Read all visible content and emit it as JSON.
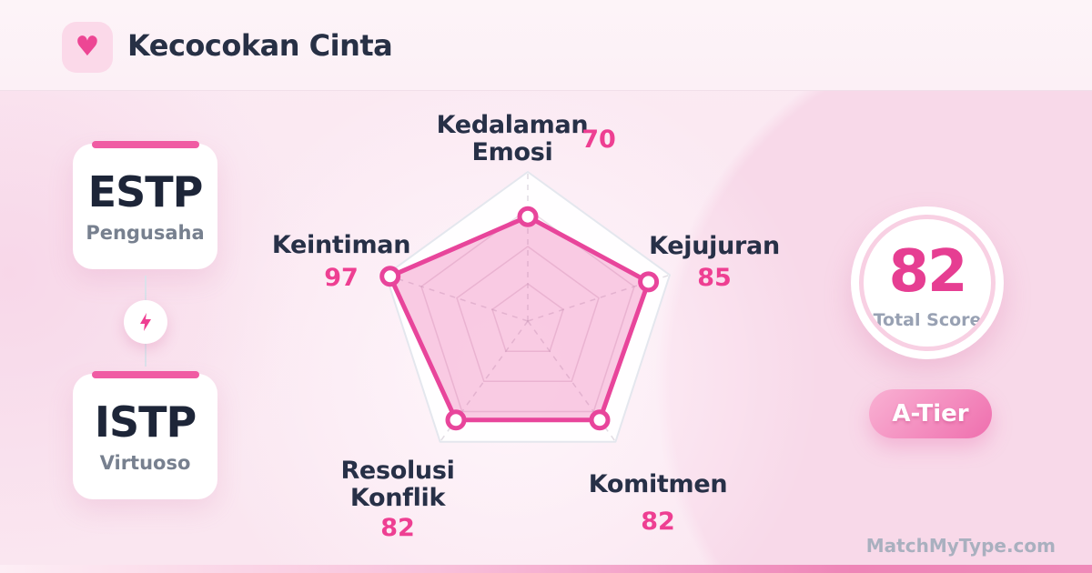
{
  "header": {
    "title": "Kecocokan Cinta"
  },
  "pair": {
    "person1": {
      "type": "ESTP",
      "nickname": "Pengusaha"
    },
    "person2": {
      "type": "ISTP",
      "nickname": "Virtuoso"
    }
  },
  "chart_data": {
    "type": "radar",
    "title": "Kecocokan Cinta",
    "categories": [
      "Kedalaman Emosi",
      "Kejujuran",
      "Komitmen",
      "Resolusi Konflik",
      "Keintiman"
    ],
    "values": [
      70,
      85,
      82,
      82,
      97
    ],
    "axis_range": [
      0,
      100
    ],
    "grid_levels": [
      25,
      50,
      75,
      100
    ],
    "grid": true,
    "legend": false,
    "series_color": "#e8459b",
    "fill_color": "rgba(233,69,155,0.28)",
    "marker": "circle-white-pink-ring"
  },
  "score": {
    "value": "82",
    "label": "Total Score",
    "tier_badge": "A-Tier"
  },
  "watermark": "MatchMyType.com",
  "colors": {
    "accent_pink": "#e8459b",
    "dark_text": "#232e44",
    "muted_text": "#77808f",
    "badge_gradient_start": "#f9b1d3",
    "badge_gradient_end": "#ef6fae",
    "background": "#fae7f1"
  }
}
